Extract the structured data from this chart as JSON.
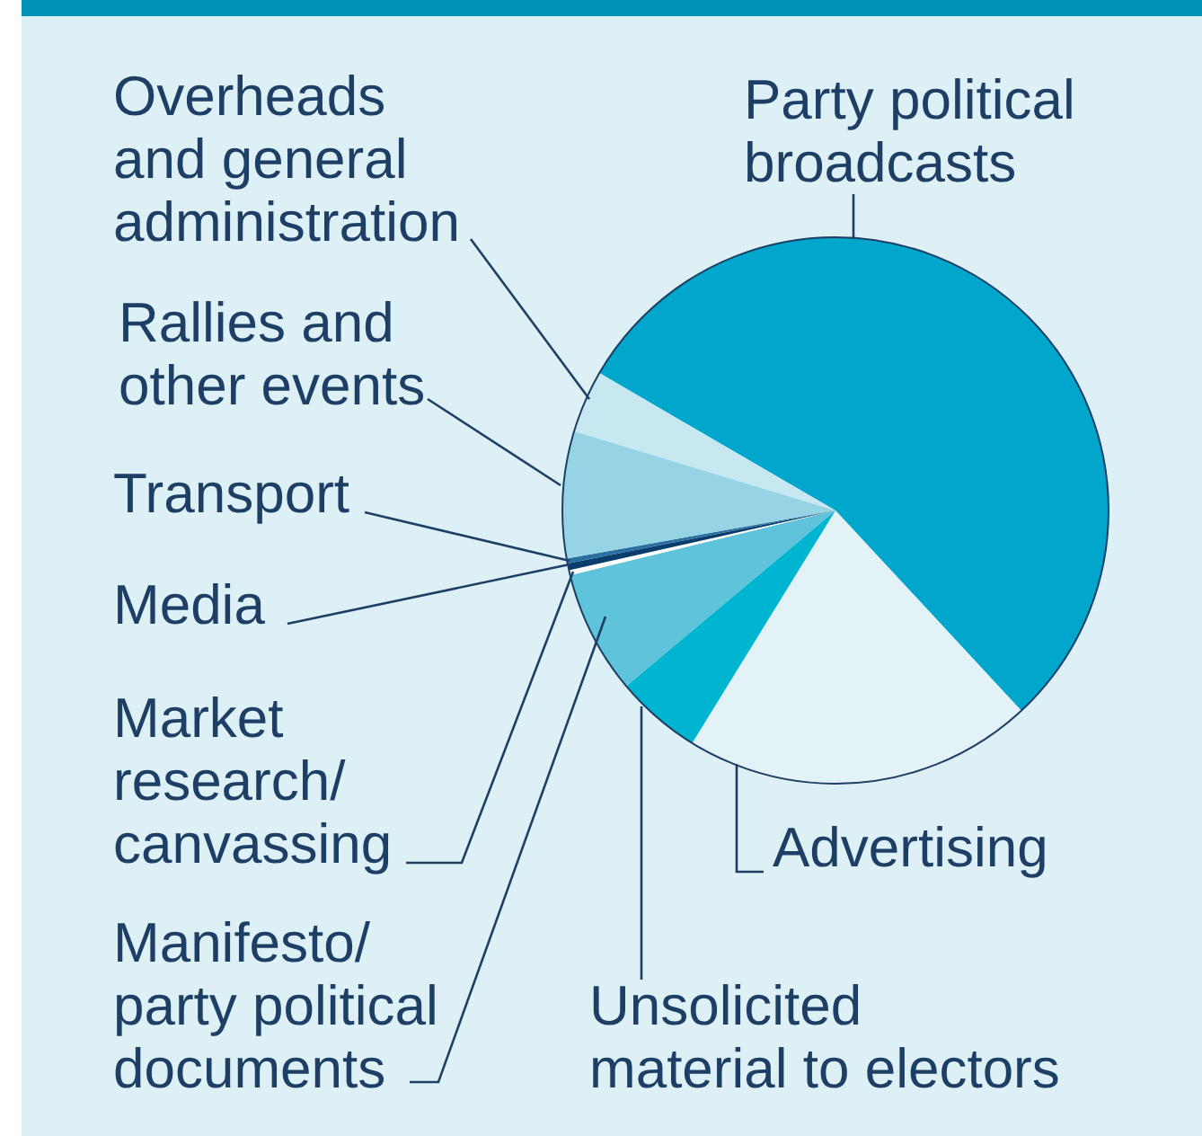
{
  "chart_data": {
    "type": "pie",
    "categories": [
      "Party political broadcasts",
      "Advertising",
      "Unsolicited material to electors",
      "Manifesto/ party political documents",
      "Market research/ canvassing",
      "Media",
      "Transport",
      "Rallies and other events",
      "Overheads and general administration"
    ],
    "values": [
      54.7,
      20.7,
      5.1,
      7.3,
      0.3,
      0.4,
      0.3,
      7.5,
      3.7
    ],
    "colors": [
      "#00a6cb",
      "#e3f2f7",
      "#00b5d1",
      "#5ec3db",
      "#ffffff",
      "#0c3c6b",
      "#2a6fa0",
      "#96d4e5",
      "#c8e8f1"
    ]
  }
}
